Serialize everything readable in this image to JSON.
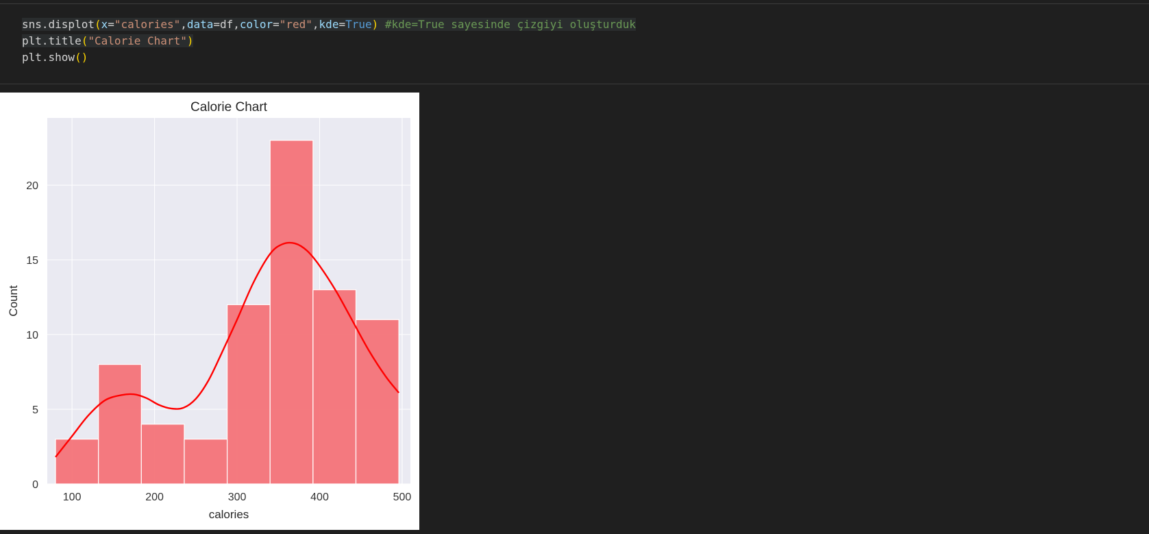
{
  "code": {
    "lines": [
      [
        {
          "t": "sns.displot",
          "k": "plain"
        },
        {
          "t": "(",
          "k": "paren"
        },
        {
          "t": "x",
          "k": "param"
        },
        {
          "t": "=",
          "k": "plain"
        },
        {
          "t": "\"calories\"",
          "k": "str"
        },
        {
          "t": ",",
          "k": "plain"
        },
        {
          "t": "data",
          "k": "param"
        },
        {
          "t": "=df,",
          "k": "plain"
        },
        {
          "t": "color",
          "k": "param"
        },
        {
          "t": "=",
          "k": "plain"
        },
        {
          "t": "\"red\"",
          "k": "str"
        },
        {
          "t": ",",
          "k": "plain"
        },
        {
          "t": "kde",
          "k": "param"
        },
        {
          "t": "=",
          "k": "plain"
        },
        {
          "t": "True",
          "k": "kw"
        },
        {
          "t": ")",
          "k": "paren"
        },
        {
          "t": " ",
          "k": "plain"
        },
        {
          "t": "#kde=True sayesinde çizgiyi oluşturduk",
          "k": "cmt"
        }
      ],
      [
        {
          "t": "plt.title",
          "k": "plain"
        },
        {
          "t": "(",
          "k": "paren"
        },
        {
          "t": "\"Calorie Chart\"",
          "k": "str"
        },
        {
          "t": ")",
          "k": "paren"
        }
      ],
      [
        {
          "t": "plt.show",
          "k": "plain"
        },
        {
          "t": "()",
          "k": "paren"
        }
      ]
    ]
  },
  "chart_data": {
    "type": "bar",
    "title": "Calorie Chart",
    "xlabel": "calories",
    "ylabel": "Count",
    "xlim": [
      70,
      510
    ],
    "ylim": [
      0,
      24.5
    ],
    "xticks": [
      100,
      200,
      300,
      400,
      500
    ],
    "yticks": [
      0,
      5,
      10,
      15,
      20
    ],
    "bins": [
      {
        "x0": 80,
        "x1": 132,
        "count": 3
      },
      {
        "x0": 132,
        "x1": 184,
        "count": 8
      },
      {
        "x0": 184,
        "x1": 236,
        "count": 4
      },
      {
        "x0": 236,
        "x1": 288,
        "count": 3
      },
      {
        "x0": 288,
        "x1": 340,
        "count": 12
      },
      {
        "x0": 340,
        "x1": 392,
        "count": 23
      },
      {
        "x0": 392,
        "x1": 444,
        "count": 13
      },
      {
        "x0": 444,
        "x1": 496,
        "count": 11
      }
    ],
    "kde": {
      "x": [
        80,
        100,
        120,
        140,
        160,
        175,
        190,
        205,
        220,
        235,
        250,
        265,
        280,
        300,
        320,
        340,
        355,
        370,
        385,
        400,
        420,
        440,
        460,
        480,
        496
      ],
      "y": [
        1.8,
        3.2,
        4.6,
        5.6,
        5.95,
        6.0,
        5.75,
        5.3,
        5.05,
        5.1,
        5.7,
        6.9,
        8.6,
        11.0,
        13.5,
        15.4,
        16.05,
        16.1,
        15.6,
        14.6,
        12.9,
        10.9,
        8.9,
        7.2,
        6.1
      ]
    },
    "grid": true,
    "bar_color": "#f47378",
    "line_color": "#ff0000",
    "plot_bg": "#eaeaf2"
  }
}
